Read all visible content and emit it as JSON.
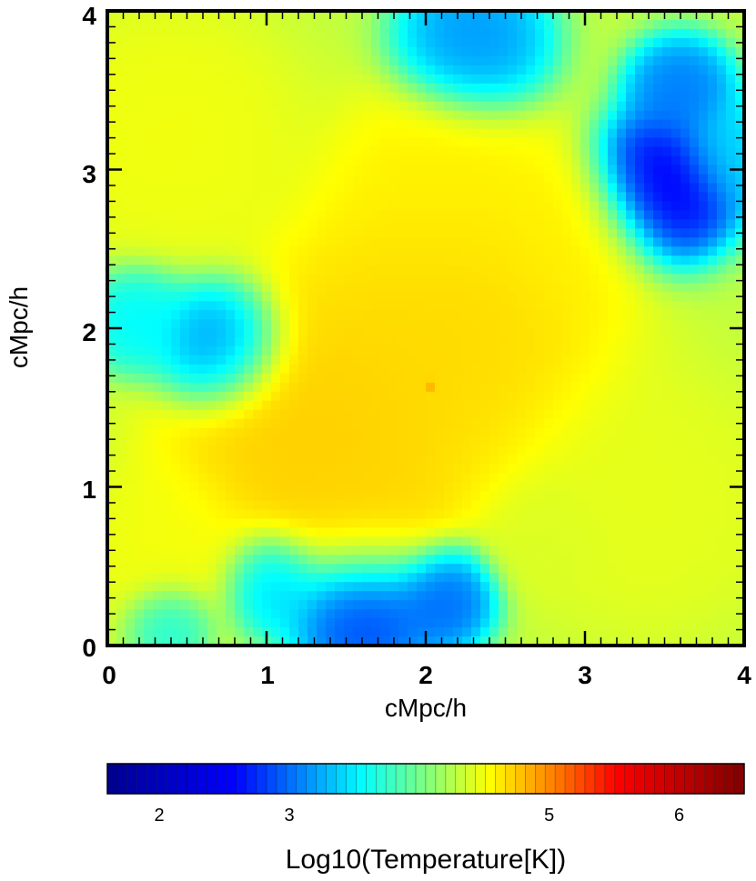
{
  "chart_data": {
    "type": "heatmap",
    "xlabel": "cMpc/h",
    "ylabel": "cMpc/h",
    "xlim": [
      0,
      4
    ],
    "ylim": [
      0,
      4
    ],
    "x_ticks": [
      "0",
      "1",
      "2",
      "3",
      "4"
    ],
    "y_ticks": [
      "0",
      "1",
      "2",
      "3",
      "4"
    ],
    "colorbar": {
      "label": "Log10(Temperature[K])",
      "range": [
        1.6,
        6.5
      ],
      "ticks": [
        "2",
        "3",
        "5",
        "6"
      ],
      "tick_values": [
        2,
        3,
        5,
        6
      ],
      "colormap": "jet",
      "stops": [
        "#00008f",
        "#0000ff",
        "#00ffff",
        "#ffff00",
        "#ff0000",
        "#800000"
      ]
    },
    "field": {
      "background": 4.3,
      "regions": [
        {
          "x": 1.3,
          "y": 1.3,
          "r": 0.7,
          "value": 4.75
        },
        {
          "x": 2.1,
          "y": 2.0,
          "r": 0.8,
          "value": 4.7
        },
        {
          "x": 2.1,
          "y": 2.9,
          "r": 0.5,
          "value": 4.6
        },
        {
          "x": 2.9,
          "y": 2.6,
          "r": 0.4,
          "value": 4.6
        },
        {
          "x": 1.6,
          "y": 0.8,
          "r": 0.4,
          "value": 4.7
        },
        {
          "x": 0.4,
          "y": 3.2,
          "r": 0.6,
          "value": 4.5
        },
        {
          "x": 0.4,
          "y": 0.6,
          "r": 0.4,
          "value": 4.5
        },
        {
          "x": 3.4,
          "y": 0.9,
          "r": 0.6,
          "value": 4.45
        },
        {
          "x": 2.8,
          "y": 0.7,
          "r": 0.3,
          "value": 4.4
        },
        {
          "x": 3.5,
          "y": 2.9,
          "r": 0.35,
          "value": 2.4
        },
        {
          "x": 3.6,
          "y": 3.5,
          "r": 0.25,
          "value": 3.0
        },
        {
          "x": 2.3,
          "y": 3.8,
          "r": 0.35,
          "value": 3.1
        },
        {
          "x": 1.6,
          "y": 0.25,
          "r": 0.35,
          "value": 2.7
        },
        {
          "x": 2.1,
          "y": 0.3,
          "r": 0.25,
          "value": 2.9
        },
        {
          "x": 0.7,
          "y": 1.9,
          "r": 0.3,
          "value": 3.0
        },
        {
          "x": 1.05,
          "y": 0.4,
          "r": 0.25,
          "value": 3.3
        },
        {
          "x": 0.2,
          "y": 2.05,
          "r": 0.25,
          "value": 3.5
        },
        {
          "x": 0.4,
          "y": 0.15,
          "r": 0.2,
          "value": 3.6
        },
        {
          "x": 3.9,
          "y": 3.1,
          "r": 0.25,
          "value": 3.4
        },
        {
          "x": 2.01,
          "y": 1.65,
          "r": 0.02,
          "value": 6.3
        }
      ]
    }
  }
}
